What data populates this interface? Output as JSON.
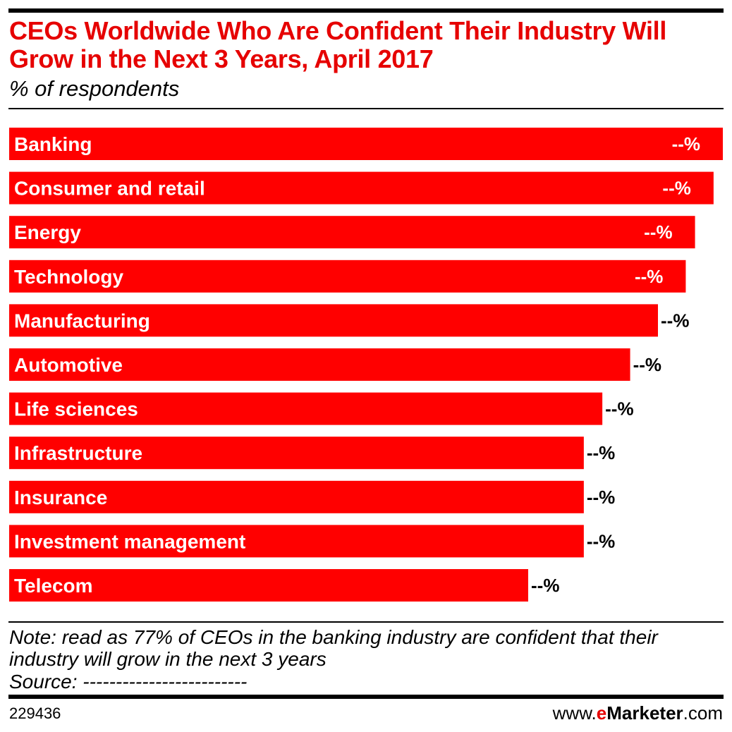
{
  "header": {
    "title": "CEOs Worldwide Who Are Confident Their Industry Will Grow in the Next 3 Years, April 2017",
    "subtitle": "% of respondents"
  },
  "chart_data": {
    "type": "bar",
    "orientation": "horizontal",
    "bar_color": "#ff0000",
    "categories": [
      "Banking",
      "Consumer and retail",
      "Energy",
      "Technology",
      "Manufacturing",
      "Automotive",
      "Life sciences",
      "Infrastructure",
      "Insurance",
      "Investment management",
      "Telecom"
    ],
    "values": [
      77,
      76,
      74,
      73,
      70,
      67,
      64,
      62,
      62,
      62,
      56
    ],
    "value_labels": [
      "--%",
      "--%",
      "--%",
      "--%",
      "--%",
      "--%",
      "--%",
      "--%",
      "--%",
      "--%",
      "--%"
    ],
    "xlim": [
      0,
      77
    ]
  },
  "footer": {
    "note": "Note: read as 77% of CEOs in the banking industry are confident that their industry will grow in the next 3 years",
    "source": "Source: -------------------------",
    "chart_id": "229436",
    "brand_prefix": "www.",
    "brand_e": "e",
    "brand_name": "Marketer",
    "brand_suffix": ".com"
  }
}
